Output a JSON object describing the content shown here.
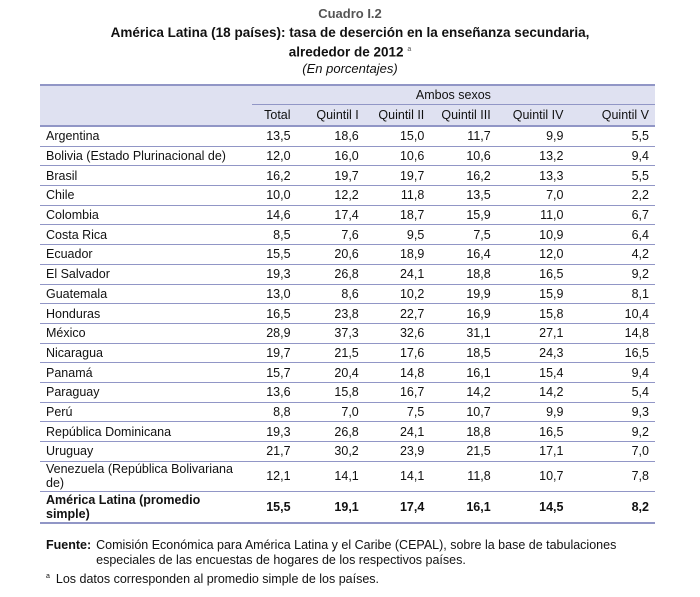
{
  "header": {
    "label": "Cuadro I.2",
    "title": "América Latina (18 países): tasa de deserción en la enseñanza secundaria,",
    "title_line2": "alrededor de 2012",
    "title_note_mark": "a",
    "subtitle": "(En porcentajes)"
  },
  "table": {
    "group_header": "Ambos sexos",
    "columns": [
      "Total",
      "Quintil I",
      "Quintil II",
      "Quintil III",
      "Quintil IV",
      "Quintil V"
    ],
    "rows": [
      {
        "country": "Argentina",
        "values": [
          "13,5",
          "18,6",
          "15,0",
          "11,7",
          "9,9",
          "5,5"
        ]
      },
      {
        "country": "Bolivia (Estado Plurinacional de)",
        "values": [
          "12,0",
          "16,0",
          "10,6",
          "10,6",
          "13,2",
          "9,4"
        ]
      },
      {
        "country": "Brasil",
        "values": [
          "16,2",
          "19,7",
          "19,7",
          "16,2",
          "13,3",
          "5,5"
        ]
      },
      {
        "country": "Chile",
        "values": [
          "10,0",
          "12,2",
          "11,8",
          "13,5",
          "7,0",
          "2,2"
        ]
      },
      {
        "country": "Colombia",
        "values": [
          "14,6",
          "17,4",
          "18,7",
          "15,9",
          "11,0",
          "6,7"
        ]
      },
      {
        "country": "Costa Rica",
        "values": [
          "8,5",
          "7,6",
          "9,5",
          "7,5",
          "10,9",
          "6,4"
        ]
      },
      {
        "country": "Ecuador",
        "values": [
          "15,5",
          "20,6",
          "18,9",
          "16,4",
          "12,0",
          "4,2"
        ]
      },
      {
        "country": "El Salvador",
        "values": [
          "19,3",
          "26,8",
          "24,1",
          "18,8",
          "16,5",
          "9,2"
        ]
      },
      {
        "country": "Guatemala",
        "values": [
          "13,0",
          "8,6",
          "10,2",
          "19,9",
          "15,9",
          "8,1"
        ]
      },
      {
        "country": "Honduras",
        "values": [
          "16,5",
          "23,8",
          "22,7",
          "16,9",
          "15,8",
          "10,4"
        ]
      },
      {
        "country": "México",
        "values": [
          "28,9",
          "37,3",
          "32,6",
          "31,1",
          "27,1",
          "14,8"
        ]
      },
      {
        "country": "Nicaragua",
        "values": [
          "19,7",
          "21,5",
          "17,6",
          "18,5",
          "24,3",
          "16,5"
        ]
      },
      {
        "country": "Panamá",
        "values": [
          "15,7",
          "20,4",
          "14,8",
          "16,1",
          "15,4",
          "9,4"
        ]
      },
      {
        "country": "Paraguay",
        "values": [
          "13,6",
          "15,8",
          "16,7",
          "14,2",
          "14,2",
          "5,4"
        ]
      },
      {
        "country": "Perú",
        "values": [
          "8,8",
          "7,0",
          "7,5",
          "10,7",
          "9,9",
          "9,3"
        ]
      },
      {
        "country": "República Dominicana",
        "values": [
          "19,3",
          "26,8",
          "24,1",
          "18,8",
          "16,5",
          "9,2"
        ]
      },
      {
        "country": "Uruguay",
        "values": [
          "21,7",
          "30,2",
          "23,9",
          "21,5",
          "17,1",
          "7,0"
        ]
      },
      {
        "country": "Venezuela (República Bolivariana de)",
        "values": [
          "12,1",
          "14,1",
          "14,1",
          "11,8",
          "10,7",
          "7,8"
        ]
      }
    ],
    "total": {
      "country": "América Latina (promedio simple)",
      "values": [
        "15,5",
        "19,1",
        "17,4",
        "16,1",
        "14,5",
        "8,2"
      ]
    }
  },
  "notes": {
    "source_label": "Fuente:",
    "source_text": "Comisión Económica para América Latina y el Caribe (CEPAL), sobre la base de tabulaciones especiales de las encuestas de hogares de los respectivos países.",
    "footnote_mark": "a",
    "footnote_text": "Los datos corresponden al promedio simple de los países."
  },
  "colors": {
    "rule": "#9196c6",
    "header_bg": "#dfe1f1"
  }
}
